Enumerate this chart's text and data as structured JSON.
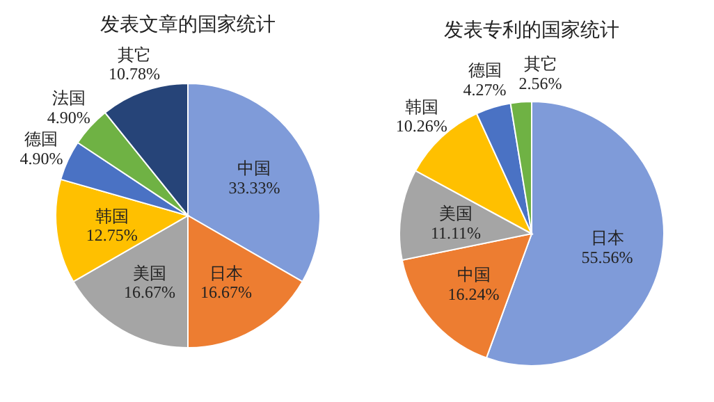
{
  "chart_data": [
    {
      "type": "pie",
      "title": "发表文章的国家统计",
      "categories": [
        "中国",
        "日本",
        "美国",
        "韩国",
        "德国",
        "法国",
        "其它"
      ],
      "values": [
        33.33,
        16.67,
        16.67,
        12.75,
        4.9,
        4.9,
        10.78
      ],
      "value_labels": [
        "33.33%",
        "16.67%",
        "16.67%",
        "12.75%",
        "4.90%",
        "4.90%",
        "10.78%"
      ],
      "colors": [
        "#7f9bd9",
        "#ed7d31",
        "#a5a5a5",
        "#ffc000",
        "#4a72c4",
        "#6fb244",
        "#264478"
      ]
    },
    {
      "type": "pie",
      "title": "发表专利的国家统计",
      "categories": [
        "日本",
        "中国",
        "美国",
        "韩国",
        "德国",
        "其它"
      ],
      "values": [
        55.56,
        16.24,
        11.11,
        10.26,
        4.27,
        2.56
      ],
      "value_labels": [
        "55.56%",
        "16.24%",
        "11.11%",
        "10.26%",
        "4.27%",
        "2.56%"
      ],
      "colors": [
        "#7f9bd9",
        "#ed7d31",
        "#a5a5a5",
        "#ffc000",
        "#4a72c4",
        "#6fb244"
      ]
    }
  ]
}
